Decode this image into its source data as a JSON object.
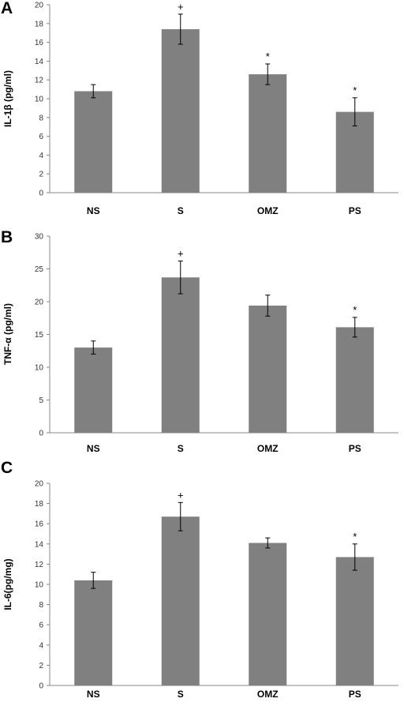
{
  "chart_data": [
    {
      "type": "bar",
      "panel_label": "A",
      "categories": [
        "NS",
        "S",
        "OMZ",
        "PS"
      ],
      "values": [
        10.8,
        17.4,
        12.6,
        8.6
      ],
      "errors": [
        0.7,
        1.6,
        1.1,
        1.5
      ],
      "annotations": [
        "",
        "+",
        "*",
        "*"
      ],
      "ylabel": "IL-1β  (pg/ml)",
      "xlabel": "",
      "ylim": [
        0,
        20
      ],
      "yticks": [
        "0",
        "2",
        "4",
        "6",
        "8",
        "10",
        "12",
        "14",
        "16",
        "18",
        "20"
      ],
      "bar_color": "#808080",
      "grid": false
    },
    {
      "type": "bar",
      "panel_label": "B",
      "categories": [
        "NS",
        "S",
        "OMZ",
        "PS"
      ],
      "values": [
        13.0,
        23.7,
        19.4,
        16.1
      ],
      "errors": [
        1.0,
        2.5,
        1.6,
        1.5
      ],
      "annotations": [
        "",
        "+",
        "",
        "*"
      ],
      "ylabel": "TNF-α (pg/ml)",
      "xlabel": "",
      "ylim": [
        0,
        30
      ],
      "yticks": [
        "0",
        "5",
        "10",
        "15",
        "20",
        "25",
        "30"
      ],
      "bar_color": "#808080",
      "grid": false
    },
    {
      "type": "bar",
      "panel_label": "C",
      "categories": [
        "NS",
        "S",
        "OMZ",
        "PS"
      ],
      "values": [
        10.4,
        16.7,
        14.1,
        12.7
      ],
      "errors": [
        0.8,
        1.4,
        0.5,
        1.3
      ],
      "annotations": [
        "",
        "+",
        "",
        "*"
      ],
      "ylabel": "IL-6(pg/mg)",
      "xlabel": "",
      "ylim": [
        0,
        20
      ],
      "yticks": [
        "0",
        "2",
        "4",
        "6",
        "8",
        "10",
        "12",
        "14",
        "16",
        "18",
        "20"
      ],
      "bar_color": "#808080",
      "grid": false
    }
  ]
}
